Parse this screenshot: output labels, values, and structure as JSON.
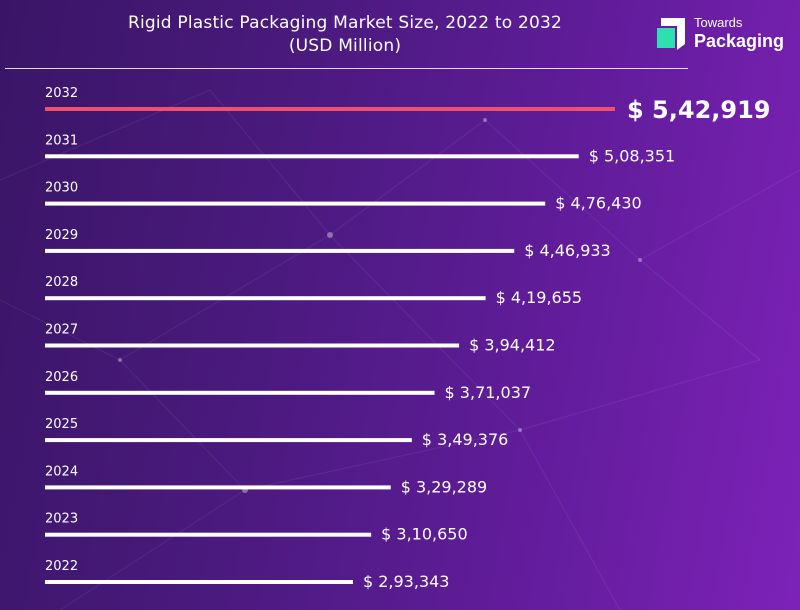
{
  "title_line1": "Rigid Plastic Packaging Market Size, 2022 to 2032",
  "title_line2": "(USD Million)",
  "logo": {
    "line1": "Towards",
    "line2": "Packaging",
    "mark_colors": [
      "#ffffff",
      "#2de0b0"
    ]
  },
  "colors": {
    "highlight_bar": "#f0506e",
    "bar": "#ffffff",
    "text": "#ffffff"
  },
  "chart_data": {
    "type": "bar",
    "orientation": "horizontal",
    "title": "Rigid Plastic Packaging Market Size, 2022 to 2032",
    "subtitle": "(USD Million)",
    "unit": "USD Million",
    "highlight": "2032",
    "categories": [
      "2032",
      "2031",
      "2030",
      "2029",
      "2028",
      "2027",
      "2026",
      "2025",
      "2024",
      "2023",
      "2022"
    ],
    "values": [
      542919,
      508351,
      476430,
      446933,
      419655,
      394412,
      371037,
      349376,
      329289,
      310650,
      293343
    ],
    "labels": [
      "$ 5,42,919",
      "$ 5,08,351",
      "$ 4,76,430",
      "$ 4,46,933",
      "$ 4,19,655",
      "$ 3,94,412",
      "$ 3,71,037",
      "$ 3,49,376",
      "$ 3,29,289",
      "$ 3,10,650",
      "$ 2,93,343"
    ]
  }
}
